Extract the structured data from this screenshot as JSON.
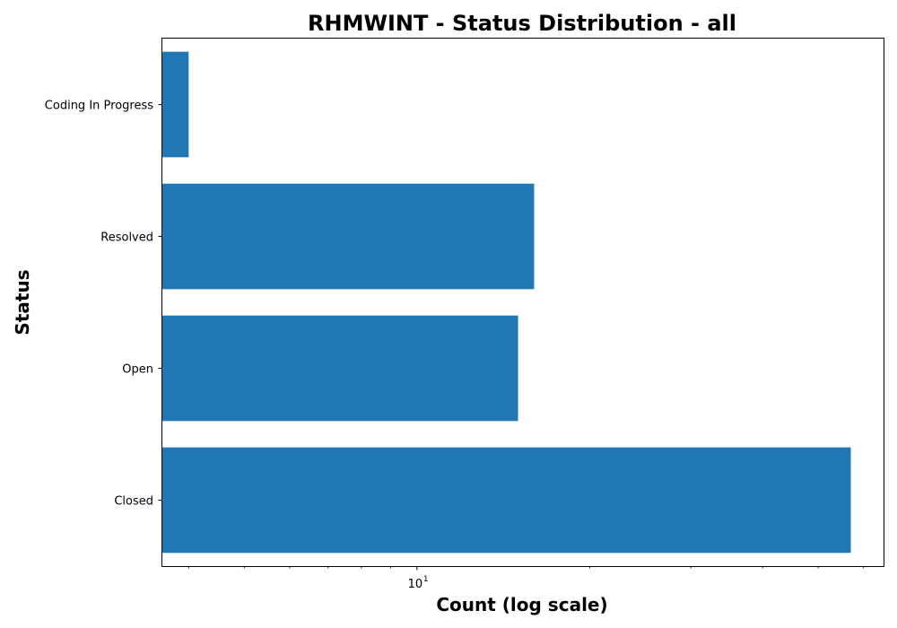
{
  "chart_data": {
    "type": "bar",
    "orientation": "horizontal",
    "title": "RHMWINT - Status Distribution - all",
    "xlabel": "Count (log scale)",
    "ylabel": "Status",
    "xscale": "log",
    "xlim": [
      3.6,
      65
    ],
    "categories": [
      "Closed",
      "Open",
      "Resolved",
      "Coding In Progress"
    ],
    "values": [
      57,
      15,
      16,
      4
    ],
    "x_major_ticks": [
      {
        "base": "10",
        "exponent": "1",
        "value": 10
      }
    ],
    "x_minor_ticks": [
      4,
      5,
      6,
      7,
      8,
      9,
      20,
      30,
      40,
      50,
      60
    ],
    "grid": false,
    "bar_color": "#1f77b4"
  }
}
